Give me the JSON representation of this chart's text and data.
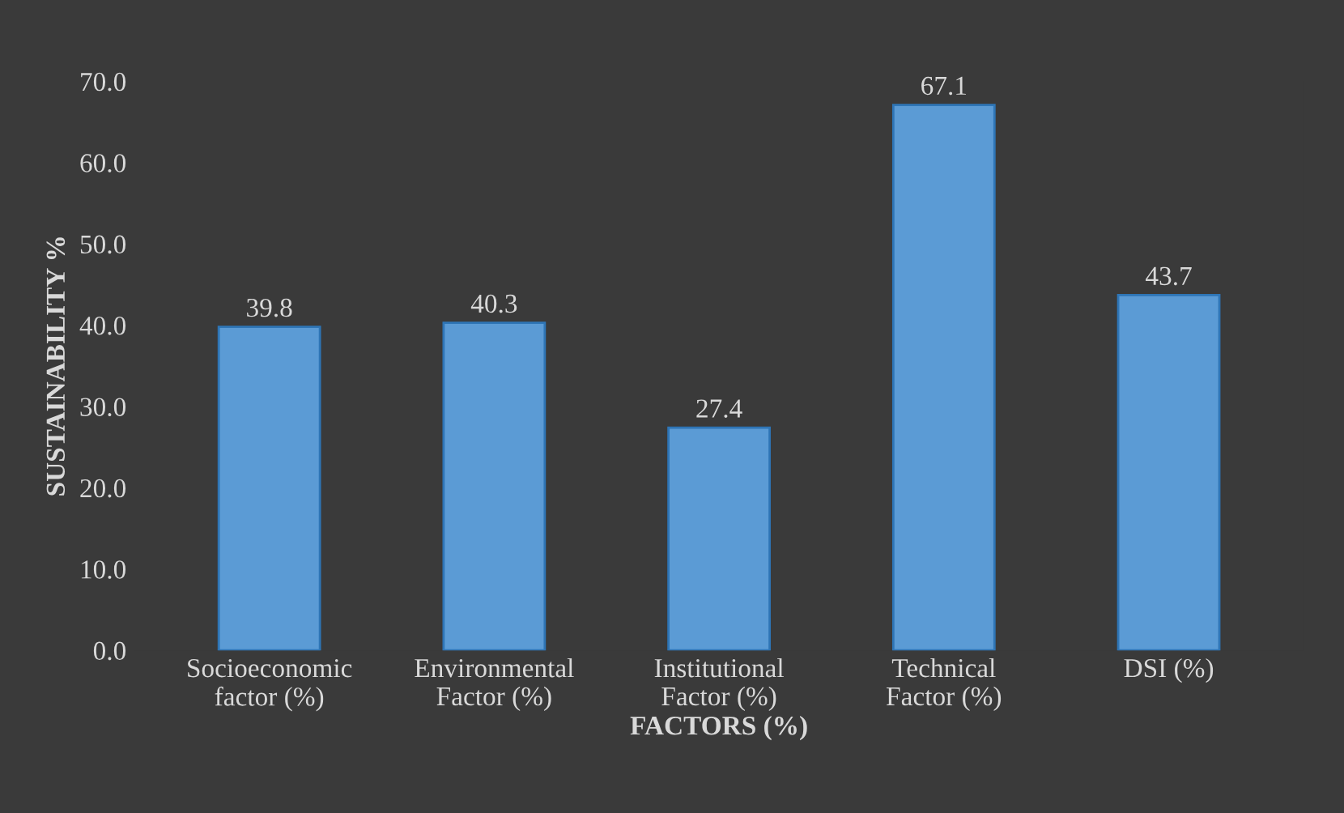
{
  "chart_data": {
    "type": "bar",
    "xlabel": "FACTORS (%)",
    "ylabel": "SUSTAINABILITY %",
    "categories": [
      "Socioeconomic\nfactor (%)",
      "Environmental\nFactor (%)",
      "Institutional\nFactor (%)",
      "Technical\nFactor (%)",
      "DSI (%)"
    ],
    "values": [
      39.8,
      40.3,
      27.4,
      67.1,
      43.7
    ],
    "color": "#5b9bd5",
    "ylim": [
      0,
      70
    ],
    "yticks": [
      {
        "value": 0,
        "label": "0.0"
      },
      {
        "value": 10,
        "label": "10.0"
      },
      {
        "value": 20,
        "label": "20.0"
      },
      {
        "value": 30,
        "label": "30.0"
      },
      {
        "value": 40,
        "label": "40.0"
      },
      {
        "value": 50,
        "label": "50.0"
      },
      {
        "value": 60,
        "label": "60.0"
      },
      {
        "value": 70,
        "label": "70.0"
      }
    ],
    "data_labels": true,
    "grid": false,
    "legend": false
  }
}
